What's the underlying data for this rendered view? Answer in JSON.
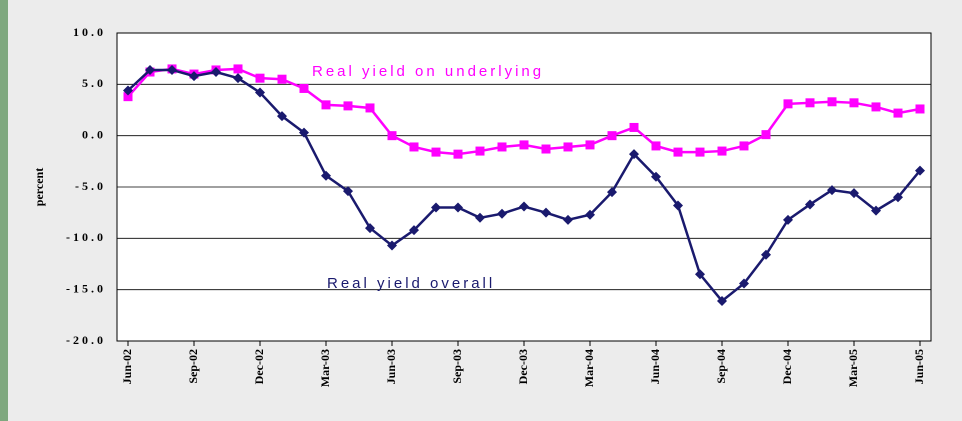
{
  "chart_data": {
    "type": "line",
    "y_label": "percent",
    "categories": [
      "Jun-02",
      null,
      null,
      "Sep-02",
      null,
      null,
      "Dec-02",
      null,
      null,
      "Mar-03",
      null,
      null,
      "Jun-03",
      null,
      null,
      "Sep-03",
      null,
      null,
      "Dec-03",
      null,
      null,
      "Mar-04",
      null,
      null,
      "Jun-04",
      null,
      null,
      "Sep-04",
      null,
      null,
      "Dec-04",
      null,
      null,
      "Mar-05",
      null,
      null,
      "Jun-05"
    ],
    "series": [
      {
        "name": "Real yield on underlying",
        "color": "#ff00ff",
        "marker": "square",
        "values": [
          3.8,
          6.2,
          6.5,
          6.0,
          6.4,
          6.5,
          5.6,
          5.5,
          4.6,
          3.0,
          2.9,
          2.7,
          0.0,
          -1.1,
          -1.6,
          -1.8,
          -1.5,
          -1.1,
          -0.9,
          -1.3,
          -1.1,
          -0.9,
          0.0,
          0.8,
          -1.0,
          -1.6,
          -1.6,
          -1.5,
          -1.0,
          0.1,
          3.1,
          3.2,
          3.3,
          3.2,
          2.8,
          2.2,
          2.6
        ]
      },
      {
        "name": "Real yield overall",
        "color": "#1a1a6e",
        "marker": "diamond",
        "values": [
          4.4,
          6.4,
          6.4,
          5.8,
          6.2,
          5.6,
          4.2,
          1.9,
          0.3,
          -3.9,
          -5.4,
          -9.0,
          -10.7,
          -9.2,
          -7.0,
          -7.0,
          -8.0,
          -7.6,
          -6.9,
          -7.5,
          -8.2,
          -7.7,
          -5.5,
          -1.8,
          -4.0,
          -6.8,
          -13.5,
          -16.1,
          -14.4,
          -11.6,
          -8.2,
          -6.7,
          -5.3,
          -5.6,
          -7.3,
          -6.0,
          -3.4
        ]
      }
    ],
    "ylim": [
      -20,
      10
    ],
    "yticks": [
      {
        "value": -20,
        "label": "-20.0"
      },
      {
        "value": -15,
        "label": "-15.0"
      },
      {
        "value": -10,
        "label": "-10.0"
      },
      {
        "value": -5,
        "label": "-5.0"
      },
      {
        "value": 0,
        "label": "0.0"
      },
      {
        "value": 5,
        "label": "5.0"
      },
      {
        "value": 10,
        "label": "10.0"
      }
    ],
    "grid": true
  }
}
